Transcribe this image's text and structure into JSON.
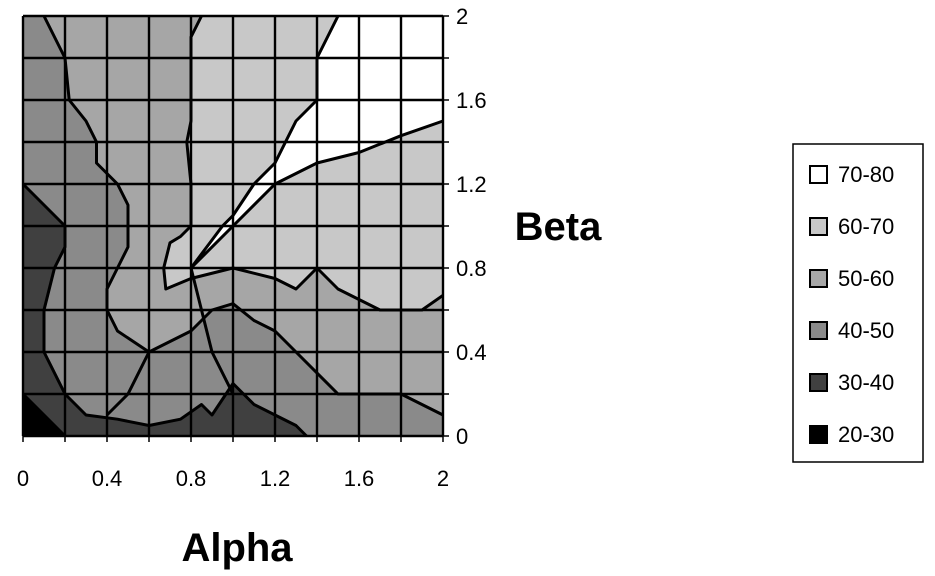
{
  "chart_data": {
    "type": "heatmap",
    "subtype": "filled-contour",
    "title": "",
    "xlabel": "Alpha",
    "ylabel": "Beta",
    "xlim": [
      0,
      2
    ],
    "ylim": [
      0,
      2
    ],
    "x_ticks": [
      "0",
      "0.4",
      "0.8",
      "1.2",
      "1.6",
      "2"
    ],
    "y_ticks": [
      "0",
      "0.4",
      "0.8",
      "1.2",
      "1.6",
      "2"
    ],
    "x_tick_values": [
      0,
      0.4,
      0.8,
      1.2,
      1.6,
      2
    ],
    "y_tick_values": [
      0,
      0.4,
      0.8,
      1.2,
      1.6,
      2
    ],
    "grid": true,
    "grid_step": 0.2,
    "y_axis_position": "right",
    "legend_position": "right",
    "bands": [
      {
        "label": "70-80",
        "color": "#ffffff"
      },
      {
        "label": "60-70",
        "color": "#c8c8c8"
      },
      {
        "label": "50-60",
        "color": "#a6a6a6"
      },
      {
        "label": "40-50",
        "color": "#8a8a8a"
      },
      {
        "label": "30-40",
        "color": "#404040"
      },
      {
        "label": "20-30",
        "color": "#000000"
      }
    ],
    "regions": [
      {
        "band": "40-50",
        "points": [
          [
            0,
            0
          ],
          [
            2,
            0
          ],
          [
            2,
            2
          ],
          [
            0,
            2
          ]
        ]
      },
      {
        "band": "50-60",
        "points": [
          [
            0.1,
            2
          ],
          [
            0.2,
            1.8
          ],
          [
            0.22,
            1.6
          ],
          [
            0.3,
            1.5
          ],
          [
            0.35,
            1.4
          ],
          [
            0.35,
            1.3
          ],
          [
            0.45,
            1.2
          ],
          [
            0.5,
            1.1
          ],
          [
            0.5,
            1.0
          ],
          [
            0.5,
            0.9
          ],
          [
            0.45,
            0.8
          ],
          [
            0.4,
            0.7
          ],
          [
            0.4,
            0.6
          ],
          [
            0.45,
            0.5
          ],
          [
            0.6,
            0.4
          ],
          [
            0.8,
            0.5
          ],
          [
            0.9,
            0.6
          ],
          [
            1.0,
            0.63
          ],
          [
            1.1,
            0.55
          ],
          [
            1.2,
            0.5
          ],
          [
            1.3,
            0.4
          ],
          [
            1.5,
            0.2
          ],
          [
            1.8,
            0.2
          ],
          [
            2,
            0.1
          ],
          [
            2,
            2
          ]
        ]
      },
      {
        "band": "60-70",
        "points": [
          [
            0.85,
            2
          ],
          [
            0.8,
            1.9
          ],
          [
            0.8,
            1.7
          ],
          [
            0.8,
            1.5
          ],
          [
            0.78,
            1.4
          ],
          [
            0.8,
            1.2
          ],
          [
            0.8,
            1.0
          ],
          [
            0.75,
            0.95
          ],
          [
            0.7,
            0.92
          ],
          [
            0.67,
            0.8
          ],
          [
            0.68,
            0.7
          ],
          [
            0.8,
            0.75
          ],
          [
            1.0,
            0.8
          ],
          [
            1.2,
            0.75
          ],
          [
            1.3,
            0.7
          ],
          [
            1.4,
            0.8
          ],
          [
            1.5,
            0.7
          ],
          [
            1.7,
            0.6
          ],
          [
            1.9,
            0.6
          ],
          [
            2,
            0.67
          ],
          [
            2,
            2
          ]
        ]
      },
      {
        "band": "70-80",
        "points": [
          [
            1.5,
            2
          ],
          [
            1.4,
            1.8
          ],
          [
            1.4,
            1.6
          ],
          [
            1.3,
            1.5
          ],
          [
            1.2,
            1.3
          ],
          [
            1.1,
            1.2
          ],
          [
            1.0,
            1.05
          ],
          [
            0.95,
            1.0
          ],
          [
            0.8,
            0.8
          ],
          [
            1.0,
            1.0
          ],
          [
            1.2,
            1.2
          ],
          [
            1.4,
            1.3
          ],
          [
            1.6,
            1.35
          ],
          [
            1.8,
            1.43
          ],
          [
            2,
            1.5
          ],
          [
            2,
            2
          ]
        ]
      },
      {
        "band": "30-40",
        "points": [
          [
            0,
            0
          ],
          [
            0,
            1.2
          ],
          [
            0.1,
            1.1
          ],
          [
            0.2,
            1.0
          ],
          [
            0.2,
            0.9
          ],
          [
            0.15,
            0.8
          ],
          [
            0.1,
            0.6
          ],
          [
            0.1,
            0.4
          ],
          [
            0.2,
            0.2
          ],
          [
            0.3,
            0.1
          ],
          [
            0.45,
            0.08
          ],
          [
            0.6,
            0.05
          ],
          [
            0.75,
            0.08
          ],
          [
            0.85,
            0.15
          ],
          [
            0.9,
            0.1
          ],
          [
            1.0,
            0.25
          ],
          [
            1.1,
            0.15
          ],
          [
            1.2,
            0.1
          ],
          [
            1.3,
            0.05
          ],
          [
            1.35,
            0
          ]
        ]
      },
      {
        "band": "20-30",
        "points": [
          [
            0,
            0
          ],
          [
            0,
            0.2
          ],
          [
            0.1,
            0.1
          ],
          [
            0.2,
            0
          ]
        ]
      }
    ],
    "contour_lines": [
      [
        [
          0.1,
          2
        ],
        [
          0.2,
          1.8
        ],
        [
          0.22,
          1.6
        ],
        [
          0.3,
          1.5
        ],
        [
          0.35,
          1.4
        ],
        [
          0.35,
          1.3
        ],
        [
          0.45,
          1.2
        ],
        [
          0.5,
          1.1
        ],
        [
          0.5,
          1.0
        ],
        [
          0.5,
          0.9
        ],
        [
          0.45,
          0.8
        ],
        [
          0.4,
          0.7
        ],
        [
          0.4,
          0.6
        ],
        [
          0.45,
          0.5
        ],
        [
          0.6,
          0.4
        ],
        [
          0.8,
          0.5
        ],
        [
          0.9,
          0.6
        ],
        [
          1.0,
          0.63
        ],
        [
          1.1,
          0.55
        ],
        [
          1.2,
          0.5
        ],
        [
          1.3,
          0.4
        ],
        [
          1.5,
          0.2
        ],
        [
          1.8,
          0.2
        ],
        [
          2,
          0.1
        ]
      ],
      [
        [
          0.85,
          2
        ],
        [
          0.8,
          1.9
        ],
        [
          0.8,
          1.7
        ],
        [
          0.8,
          1.5
        ],
        [
          0.78,
          1.4
        ],
        [
          0.8,
          1.2
        ],
        [
          0.8,
          1.0
        ],
        [
          0.75,
          0.95
        ],
        [
          0.7,
          0.92
        ],
        [
          0.67,
          0.8
        ],
        [
          0.68,
          0.7
        ],
        [
          0.8,
          0.75
        ],
        [
          1.0,
          0.8
        ],
        [
          1.2,
          0.75
        ],
        [
          1.3,
          0.7
        ],
        [
          1.4,
          0.8
        ],
        [
          1.5,
          0.7
        ],
        [
          1.7,
          0.6
        ],
        [
          1.9,
          0.6
        ],
        [
          2,
          0.67
        ]
      ],
      [
        [
          1.5,
          2
        ],
        [
          1.4,
          1.8
        ],
        [
          1.4,
          1.6
        ],
        [
          1.3,
          1.5
        ],
        [
          1.2,
          1.3
        ],
        [
          1.1,
          1.2
        ],
        [
          1.0,
          1.05
        ],
        [
          0.95,
          1.0
        ],
        [
          0.8,
          0.8
        ],
        [
          1.0,
          1.0
        ],
        [
          1.2,
          1.2
        ],
        [
          1.4,
          1.3
        ],
        [
          1.6,
          1.35
        ],
        [
          1.8,
          1.43
        ],
        [
          2,
          1.5
        ]
      ],
      [
        [
          0,
          1.2
        ],
        [
          0.1,
          1.1
        ],
        [
          0.2,
          1.0
        ],
        [
          0.2,
          0.9
        ],
        [
          0.15,
          0.8
        ],
        [
          0.1,
          0.6
        ],
        [
          0.1,
          0.4
        ],
        [
          0.2,
          0.2
        ],
        [
          0.3,
          0.1
        ],
        [
          0.45,
          0.08
        ],
        [
          0.6,
          0.05
        ],
        [
          0.75,
          0.08
        ],
        [
          0.85,
          0.15
        ],
        [
          0.9,
          0.1
        ],
        [
          1.0,
          0.25
        ],
        [
          1.1,
          0.15
        ],
        [
          1.2,
          0.1
        ],
        [
          1.3,
          0.05
        ],
        [
          1.35,
          0
        ]
      ],
      [
        [
          0,
          0.2
        ],
        [
          0.1,
          0.1
        ],
        [
          0.2,
          0
        ]
      ],
      [
        [
          0.8,
          0.8
        ],
        [
          0.9,
          0.4
        ],
        [
          1.0,
          0.2
        ]
      ],
      [
        [
          0.6,
          0.4
        ],
        [
          0.5,
          0.2
        ],
        [
          0.4,
          0.1
        ]
      ]
    ]
  }
}
